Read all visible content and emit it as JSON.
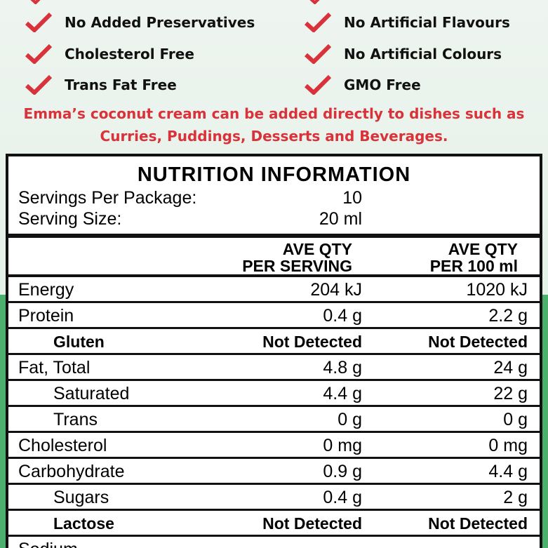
{
  "claims": {
    "left": [
      "No Added Preservatives",
      "Cholesterol Free",
      "Trans Fat Free"
    ],
    "right": [
      "No Artificial Flavours",
      "No Artificial Colours",
      "GMO Free"
    ]
  },
  "blurb": {
    "line1": "Emma’s coconut cream can be added directly to dishes such as",
    "line2": "Curries, Puddings, Desserts and Beverages."
  },
  "colors": {
    "accent": "#d9323a",
    "border": "#111111",
    "background": "#e8f3ea"
  },
  "nutrition": {
    "title": "NUTRITION INFORMATION",
    "servings_label": "Servings Per Package:",
    "servings_value": "10",
    "size_label": "Serving Size:",
    "size_value": "20 ml",
    "col1": {
      "line1": "AVE QTY",
      "line2": "PER SERVING"
    },
    "col2": {
      "line1": "AVE QTY",
      "line2": "PER 100 ml"
    },
    "rows": [
      {
        "name": "Energy",
        "per_serving": "204 kJ",
        "per_100": "1020 kJ"
      },
      {
        "name": "Protein",
        "per_serving": "0.4 g",
        "per_100": "2.2 g"
      },
      {
        "name": "Gluten",
        "per_serving": "Not Detected",
        "per_100": "Not Detected"
      },
      {
        "name": "Fat, Total",
        "per_serving": "4.8 g",
        "per_100": "24 g"
      },
      {
        "name": "Saturated",
        "per_serving": "4.4 g",
        "per_100": "22 g"
      },
      {
        "name": "Trans",
        "per_serving": "0 g",
        "per_100": "0 g"
      },
      {
        "name": "Cholesterol",
        "per_serving": "0 mg",
        "per_100": "0 mg"
      },
      {
        "name": "Carbohydrate",
        "per_serving": "0.9 g",
        "per_100": "4.4 g"
      },
      {
        "name": "Sugars",
        "per_serving": "0.4 g",
        "per_100": "2 g"
      },
      {
        "name": "Lactose",
        "per_serving": "Not Detected",
        "per_100": "Not Detected"
      },
      {
        "name": "Sodium"
      }
    ]
  }
}
